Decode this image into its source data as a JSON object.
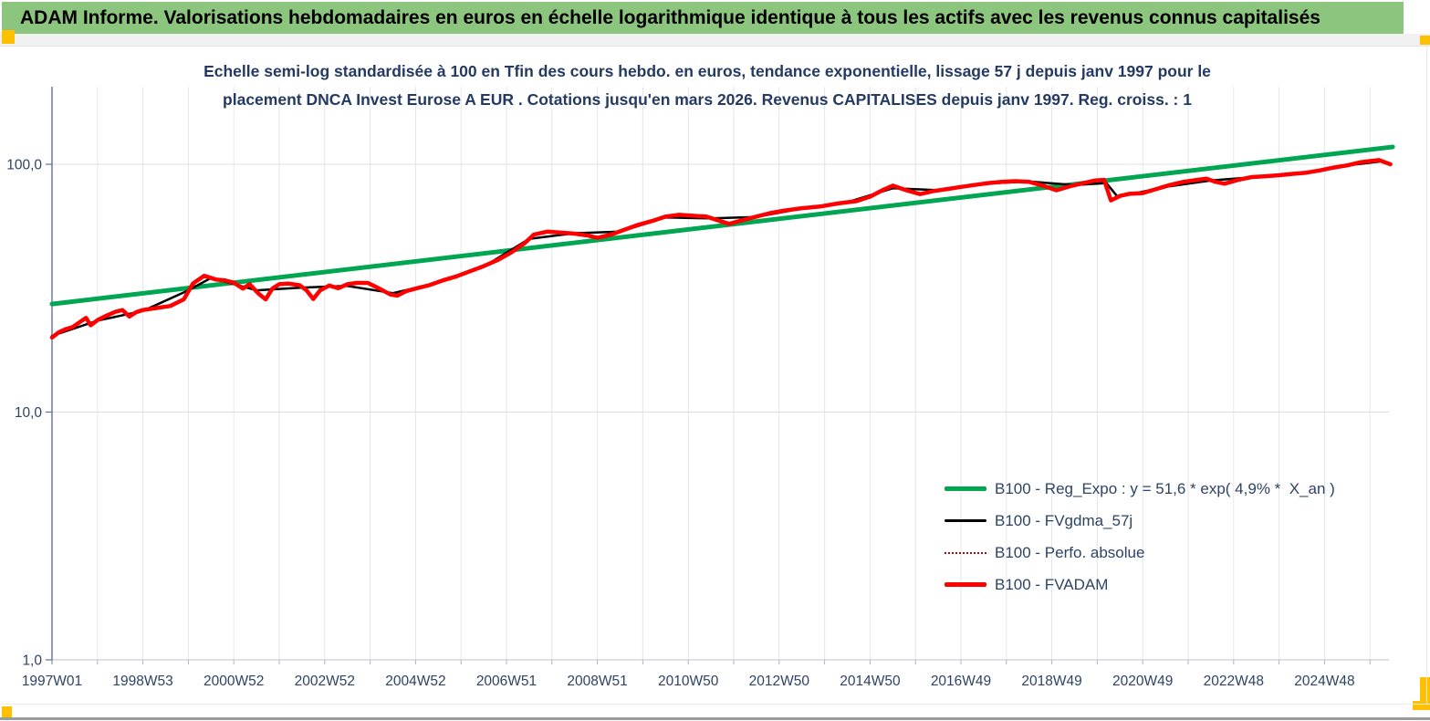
{
  "header": {
    "title": "ADAM Informe. Valorisations hebdomadaires en euros en échelle logarithmique identique à tous les actifs avec les revenus connus capitalisés"
  },
  "chart_data": {
    "type": "line",
    "y_scale": "log",
    "title_line1": "Echelle semi-log standardisée à 100 en Tfin des cours hebdo. en euros, tendance exponentielle, lissage 57 j depuis janv 1997 pour le",
    "title_line2": "placement DNCA Invest Eurose A EUR . Cotations jusqu'en mars 2026. Revenus CAPITALISES depuis janv 1997. Reg. croiss. : 1",
    "x_tick_labels": [
      "1997W01",
      "1998W53",
      "2000W52",
      "2002W52",
      "2004W52",
      "2006W51",
      "2008W51",
      "2010W50",
      "2012W50",
      "2014W50",
      "2016W49",
      "2018W49",
      "2020W49",
      "2022W48",
      "2024W48"
    ],
    "x_range_years": [
      1997.0,
      2026.6
    ],
    "y_ticks": [
      {
        "label": "100,0",
        "value": 100
      },
      {
        "label": "10,0",
        "value": 10
      },
      {
        "label": "1,0",
        "value": 1
      }
    ],
    "ylim": [
      1,
      180
    ],
    "grid": {
      "vertical_step_years": 1,
      "horizontal_decades": true
    },
    "legend_position": "right-middle",
    "series": [
      {
        "name": "B100 - Reg_Expo : y = 51,6 * exp( 4,9% *  X_an )",
        "color": "#00A651",
        "width": 5,
        "points": [
          [
            1997.0,
            27.3
          ],
          [
            2026.5,
            117.5
          ]
        ]
      },
      {
        "name": "B100 - FVgdma_57j",
        "color": "#000000",
        "width": 2.5,
        "points": [
          [
            1997.0,
            20.3
          ],
          [
            1998.0,
            23.4
          ],
          [
            1999.0,
            25.6
          ],
          [
            2000.0,
            31.0
          ],
          [
            2000.5,
            34.8
          ],
          [
            2001.5,
            31.0
          ],
          [
            2002.5,
            31.8
          ],
          [
            2003.5,
            32.3
          ],
          [
            2004.5,
            30.2
          ],
          [
            2005.5,
            33.3
          ],
          [
            2006.5,
            38.6
          ],
          [
            2007.5,
            50.0
          ],
          [
            2008.5,
            52.7
          ],
          [
            2009.5,
            53.5
          ],
          [
            2010.5,
            61.0
          ],
          [
            2011.5,
            60.5
          ],
          [
            2012.5,
            61.3
          ],
          [
            2013.5,
            66.3
          ],
          [
            2014.5,
            70.3
          ],
          [
            2015.5,
            80.0
          ],
          [
            2016.5,
            78.6
          ],
          [
            2017.5,
            83.5
          ],
          [
            2018.5,
            85.2
          ],
          [
            2019.5,
            82.5
          ],
          [
            2020.2,
            84.0
          ],
          [
            2020.45,
            73.8
          ],
          [
            2021.5,
            81.0
          ],
          [
            2022.5,
            86.0
          ],
          [
            2023.5,
            88.9
          ],
          [
            2024.5,
            92.0
          ],
          [
            2025.5,
            99.0
          ],
          [
            2026.3,
            103.0
          ],
          [
            2026.45,
            100.5
          ]
        ]
      },
      {
        "name": "B100 - Perfo. absolue",
        "color": "#C00000",
        "width": 1.5,
        "dash": "2 3",
        "same_as": "B100 - FVADAM"
      },
      {
        "name": "B100 - FVADAM",
        "color": "#FF0000",
        "width": 4.5,
        "points": [
          [
            1997.0,
            20.0
          ],
          [
            1997.15,
            21.0
          ],
          [
            1997.3,
            21.6
          ],
          [
            1997.45,
            22.0
          ],
          [
            1997.6,
            23.0
          ],
          [
            1997.75,
            24.0
          ],
          [
            1997.85,
            22.4
          ],
          [
            1998.0,
            23.5
          ],
          [
            1998.2,
            24.5
          ],
          [
            1998.4,
            25.4
          ],
          [
            1998.55,
            25.8
          ],
          [
            1998.7,
            24.3
          ],
          [
            1998.85,
            25.3
          ],
          [
            1999.0,
            25.8
          ],
          [
            1999.3,
            26.3
          ],
          [
            1999.6,
            26.8
          ],
          [
            1999.9,
            28.5
          ],
          [
            2000.1,
            33.0
          ],
          [
            2000.35,
            35.5
          ],
          [
            2000.6,
            34.3
          ],
          [
            2000.8,
            34.0
          ],
          [
            2001.0,
            33.3
          ],
          [
            2001.2,
            31.5
          ],
          [
            2001.35,
            32.8
          ],
          [
            2001.55,
            30.0
          ],
          [
            2001.7,
            28.5
          ],
          [
            2001.85,
            31.5
          ],
          [
            2002.0,
            32.8
          ],
          [
            2002.2,
            33.0
          ],
          [
            2002.45,
            32.5
          ],
          [
            2002.6,
            31.0
          ],
          [
            2002.75,
            28.6
          ],
          [
            2002.9,
            31.0
          ],
          [
            2003.1,
            32.4
          ],
          [
            2003.3,
            31.6
          ],
          [
            2003.5,
            32.8
          ],
          [
            2003.7,
            33.2
          ],
          [
            2003.95,
            33.2
          ],
          [
            2004.2,
            31.5
          ],
          [
            2004.45,
            29.8
          ],
          [
            2004.6,
            29.5
          ],
          [
            2004.8,
            30.8
          ],
          [
            2005.0,
            31.5
          ],
          [
            2005.3,
            32.5
          ],
          [
            2005.6,
            34.0
          ],
          [
            2005.9,
            35.3
          ],
          [
            2006.2,
            37.0
          ],
          [
            2006.5,
            38.8
          ],
          [
            2006.8,
            41.0
          ],
          [
            2007.1,
            44.0
          ],
          [
            2007.4,
            48.0
          ],
          [
            2007.6,
            52.0
          ],
          [
            2007.9,
            53.5
          ],
          [
            2008.2,
            53.0
          ],
          [
            2008.5,
            52.5
          ],
          [
            2008.8,
            51.5
          ],
          [
            2009.0,
            50.5
          ],
          [
            2009.3,
            52.0
          ],
          [
            2009.6,
            54.5
          ],
          [
            2009.9,
            57.0
          ],
          [
            2010.2,
            59.0
          ],
          [
            2010.5,
            61.5
          ],
          [
            2010.8,
            62.5
          ],
          [
            2011.1,
            62.0
          ],
          [
            2011.4,
            61.5
          ],
          [
            2011.7,
            59.0
          ],
          [
            2011.9,
            57.5
          ],
          [
            2012.2,
            59.5
          ],
          [
            2012.5,
            61.5
          ],
          [
            2012.8,
            63.5
          ],
          [
            2013.1,
            65.0
          ],
          [
            2013.5,
            66.5
          ],
          [
            2013.9,
            67.5
          ],
          [
            2014.3,
            69.5
          ],
          [
            2014.7,
            71.0
          ],
          [
            2015.0,
            74.0
          ],
          [
            2015.3,
            79.0
          ],
          [
            2015.5,
            82.0
          ],
          [
            2015.8,
            78.5
          ],
          [
            2016.1,
            75.8
          ],
          [
            2016.4,
            78.0
          ],
          [
            2016.7,
            79.5
          ],
          [
            2017.0,
            81.0
          ],
          [
            2017.3,
            82.5
          ],
          [
            2017.6,
            84.0
          ],
          [
            2017.9,
            85.0
          ],
          [
            2018.2,
            85.5
          ],
          [
            2018.5,
            85.0
          ],
          [
            2018.8,
            82.0
          ],
          [
            2019.1,
            78.5
          ],
          [
            2019.4,
            81.5
          ],
          [
            2019.7,
            84.0
          ],
          [
            2019.95,
            86.0
          ],
          [
            2020.15,
            86.5
          ],
          [
            2020.3,
            71.5
          ],
          [
            2020.5,
            74.5
          ],
          [
            2020.7,
            76.0
          ],
          [
            2021.0,
            76.5
          ],
          [
            2021.3,
            79.5
          ],
          [
            2021.6,
            82.5
          ],
          [
            2021.9,
            85.0
          ],
          [
            2022.2,
            86.5
          ],
          [
            2022.4,
            87.5
          ],
          [
            2022.6,
            85.0
          ],
          [
            2022.8,
            83.5
          ],
          [
            2023.1,
            86.5
          ],
          [
            2023.4,
            88.8
          ],
          [
            2023.7,
            89.5
          ],
          [
            2024.0,
            90.3
          ],
          [
            2024.3,
            91.5
          ],
          [
            2024.6,
            92.5
          ],
          [
            2024.9,
            94.5
          ],
          [
            2025.2,
            97.0
          ],
          [
            2025.5,
            99.0
          ],
          [
            2025.8,
            102.0
          ],
          [
            2026.0,
            103.0
          ],
          [
            2026.2,
            104.0
          ],
          [
            2026.35,
            101.5
          ],
          [
            2026.45,
            100.0
          ]
        ]
      }
    ],
    "colors": {
      "banner_green": "#8CC57E",
      "selection_orange": "#FFC000",
      "text_navy": "#243A63",
      "axis_blue_gray": "#5F7298"
    }
  }
}
